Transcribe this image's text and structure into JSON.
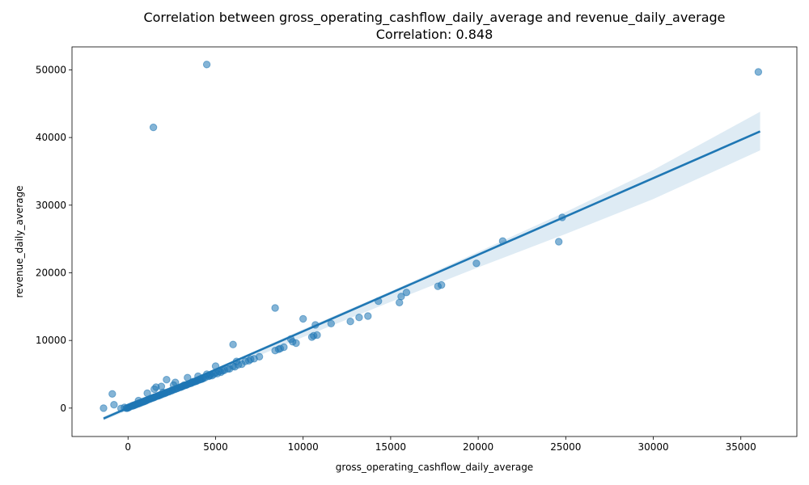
{
  "chart_data": {
    "type": "scatter",
    "title": "Correlation between gross_operating_cashflow_daily_average and revenue_daily_average",
    "subtitle": "Correlation: 0.848",
    "xlabel": "gross_operating_cashflow_daily_average",
    "ylabel": "revenue_daily_average",
    "xlim": [
      -3200,
      38200
    ],
    "ylim": [
      -4200,
      53400
    ],
    "xticks": [
      0,
      5000,
      10000,
      15000,
      20000,
      25000,
      30000,
      35000
    ],
    "xtick_labels": [
      "0",
      "5000",
      "10000",
      "15000",
      "20000",
      "25000",
      "30000",
      "35000"
    ],
    "yticks": [
      0,
      10000,
      20000,
      30000,
      40000,
      50000
    ],
    "ytick_labels": [
      "0",
      "10000",
      "20000",
      "30000",
      "40000",
      "50000"
    ],
    "grid": false,
    "point_color": "#1f77b4",
    "line_color": "#1f77b4",
    "regression": {
      "x": [
        -1400,
        36100
      ],
      "y": [
        -1550,
        40900
      ]
    },
    "confidence_band": {
      "x": [
        -1400,
        1000,
        3000,
        5000,
        10000,
        15000,
        20000,
        25000,
        30000,
        36100
      ],
      "upper": [
        -1250,
        1350,
        3600,
        5850,
        11650,
        17250,
        23100,
        29000,
        35200,
        43800
      ],
      "lower": [
        -1850,
        800,
        3000,
        5100,
        10500,
        15700,
        20800,
        25750,
        30900,
        38100
      ]
    },
    "points": {
      "x": [
        4500,
        36000,
        1450,
        24800,
        21400,
        24600,
        19900,
        15900,
        15600,
        17900,
        17700,
        15500,
        14300,
        13700,
        13200,
        12700,
        11600,
        10800,
        10600,
        10500,
        10700,
        10000,
        9600,
        9300,
        9400,
        8900,
        8700,
        8600,
        8400,
        8400,
        7500,
        7200,
        6900,
        6700,
        6500,
        6300,
        6100,
        6000,
        6000,
        5800,
        5500,
        5300,
        5100,
        5000,
        4800,
        4600,
        4300,
        4100,
        3900,
        3800,
        3600,
        3500,
        3400,
        3300,
        3100,
        3000,
        2800,
        2700,
        2700,
        2500,
        2300,
        2200,
        2100,
        1900,
        1800,
        1700,
        1500,
        1400,
        1300,
        1200,
        1100,
        1000,
        900,
        800,
        700,
        600,
        500,
        400,
        300,
        200,
        100,
        50,
        0,
        -50,
        -100,
        -200,
        -400,
        -800,
        -900,
        -1400,
        1600,
        1900,
        2200,
        3400,
        4000,
        4500,
        5000,
        6200,
        7000,
        600,
        1100,
        1500,
        2000,
        2600,
        3200,
        3700,
        4200,
        4700,
        5200,
        250,
        350,
        450,
        550,
        650,
        750,
        850,
        950,
        1050,
        1250,
        1350,
        1450,
        1550,
        1650,
        1750,
        1850,
        1950,
        2050,
        2150,
        2350,
        2450,
        2550,
        2650,
        2850,
        2950,
        3050,
        3150,
        3250,
        3350,
        3550,
        3650,
        3750,
        3850,
        3950,
        4050,
        4150,
        4250,
        4400,
        4650,
        4900,
        5400,
        5700
      ],
      "y": [
        50800,
        49700,
        41500,
        28200,
        24700,
        24600,
        21400,
        17100,
        16500,
        18200,
        18000,
        15600,
        15800,
        13600,
        13400,
        12800,
        12500,
        10800,
        10700,
        10500,
        12300,
        13200,
        9600,
        10200,
        9800,
        9000,
        8800,
        8700,
        8500,
        14800,
        7600,
        7300,
        7000,
        6900,
        6500,
        6400,
        6100,
        6200,
        9400,
        5800,
        5600,
        5300,
        5100,
        5200,
        4800,
        4700,
        4400,
        4200,
        4000,
        3900,
        3700,
        3600,
        3500,
        3400,
        3200,
        3100,
        2900,
        2800,
        3800,
        2600,
        2400,
        2300,
        2200,
        2000,
        1900,
        1800,
        1600,
        1500,
        1400,
        1300,
        1200,
        1100,
        1000,
        900,
        800,
        700,
        600,
        500,
        400,
        300,
        200,
        100,
        50,
        0,
        0,
        100,
        -50,
        500,
        2100,
        0,
        3100,
        3200,
        4200,
        4500,
        4700,
        5000,
        6200,
        6900,
        7200,
        1100,
        2200,
        2800,
        2300,
        3400,
        3400,
        3900,
        4300,
        4900,
        5400,
        300,
        400,
        500,
        600,
        700,
        800,
        900,
        1000,
        1100,
        1350,
        1450,
        1550,
        1650,
        1750,
        1850,
        1950,
        2050,
        2150,
        2250,
        2450,
        2550,
        2650,
        2750,
        2950,
        3050,
        3150,
        3250,
        3350,
        3450,
        3650,
        3750,
        3850,
        3950,
        4050,
        4150,
        4250,
        4350,
        4500,
        4750,
        5000,
        5500,
        5800
      ]
    }
  }
}
